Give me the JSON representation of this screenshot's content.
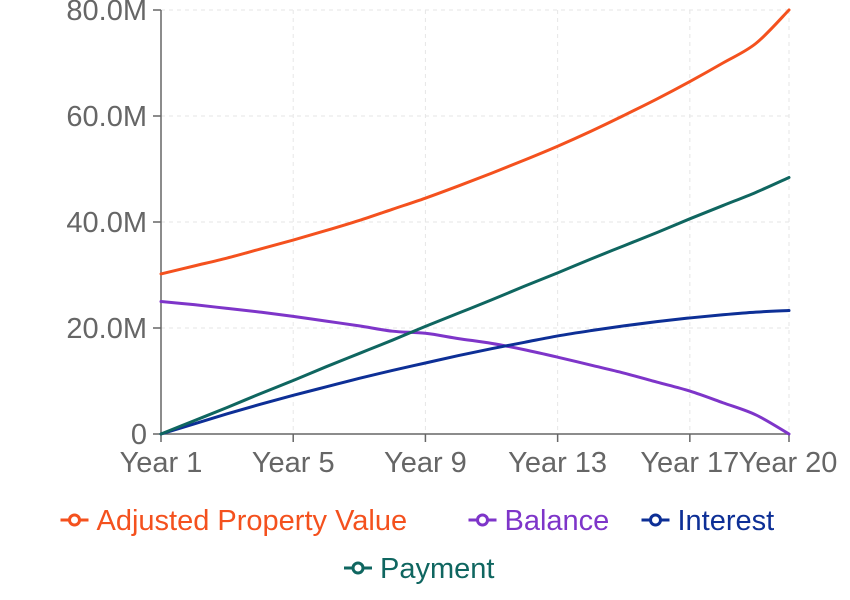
{
  "chart_data": {
    "type": "line",
    "x": [
      "Year 1",
      "Year 2",
      "Year 3",
      "Year 4",
      "Year 5",
      "Year 6",
      "Year 7",
      "Year 8",
      "Year 9",
      "Year 10",
      "Year 11",
      "Year 12",
      "Year 13",
      "Year 14",
      "Year 15",
      "Year 16",
      "Year 17",
      "Year 18",
      "Year 19",
      "Year 20"
    ],
    "x_tick_labels": [
      "Year 1",
      "Year 5",
      "Year 9",
      "Year 13",
      "Year 17",
      "Year 20"
    ],
    "y_ticks": [
      0,
      20000000,
      40000000,
      60000000,
      80000000
    ],
    "y_tick_labels": [
      "0",
      "20.0M",
      "40.0M",
      "60.0M",
      "80.0M"
    ],
    "ylim": [
      0,
      80000000
    ],
    "grid": true,
    "legend_position": "bottom",
    "series": [
      {
        "name": "Adjusted Property Value",
        "color": "#f4511e",
        "values": [
          30200000,
          31700000,
          33200000,
          34900000,
          36600000,
          38400000,
          40300000,
          42400000,
          44500000,
          46800000,
          49200000,
          51700000,
          54300000,
          57100000,
          60100000,
          63200000,
          66500000,
          70000000,
          73700000,
          80000000
        ]
      },
      {
        "name": "Balance",
        "color": "#7e35c9",
        "values": [
          25000000,
          24400000,
          23700000,
          23000000,
          22200000,
          21300000,
          20400000,
          19400000,
          19000000,
          18000000,
          17100000,
          15900000,
          14500000,
          13000000,
          11500000,
          9800000,
          8100000,
          5900000,
          3600000,
          0
        ]
      },
      {
        "name": "Interest",
        "color": "#0d2f96",
        "values": [
          0,
          1900000,
          3800000,
          5600000,
          7300000,
          8900000,
          10500000,
          12000000,
          13400000,
          14800000,
          16100000,
          17300000,
          18500000,
          19500000,
          20400000,
          21200000,
          21900000,
          22500000,
          23000000,
          23300000
        ]
      },
      {
        "name": "Payment",
        "color": "#0f6660",
        "values": [
          0,
          2500000,
          5000000,
          7600000,
          10100000,
          12700000,
          15200000,
          17700000,
          20300000,
          22800000,
          25300000,
          27900000,
          30400000,
          33000000,
          35500000,
          38000000,
          40600000,
          43100000,
          45600000,
          48400000
        ]
      }
    ]
  }
}
